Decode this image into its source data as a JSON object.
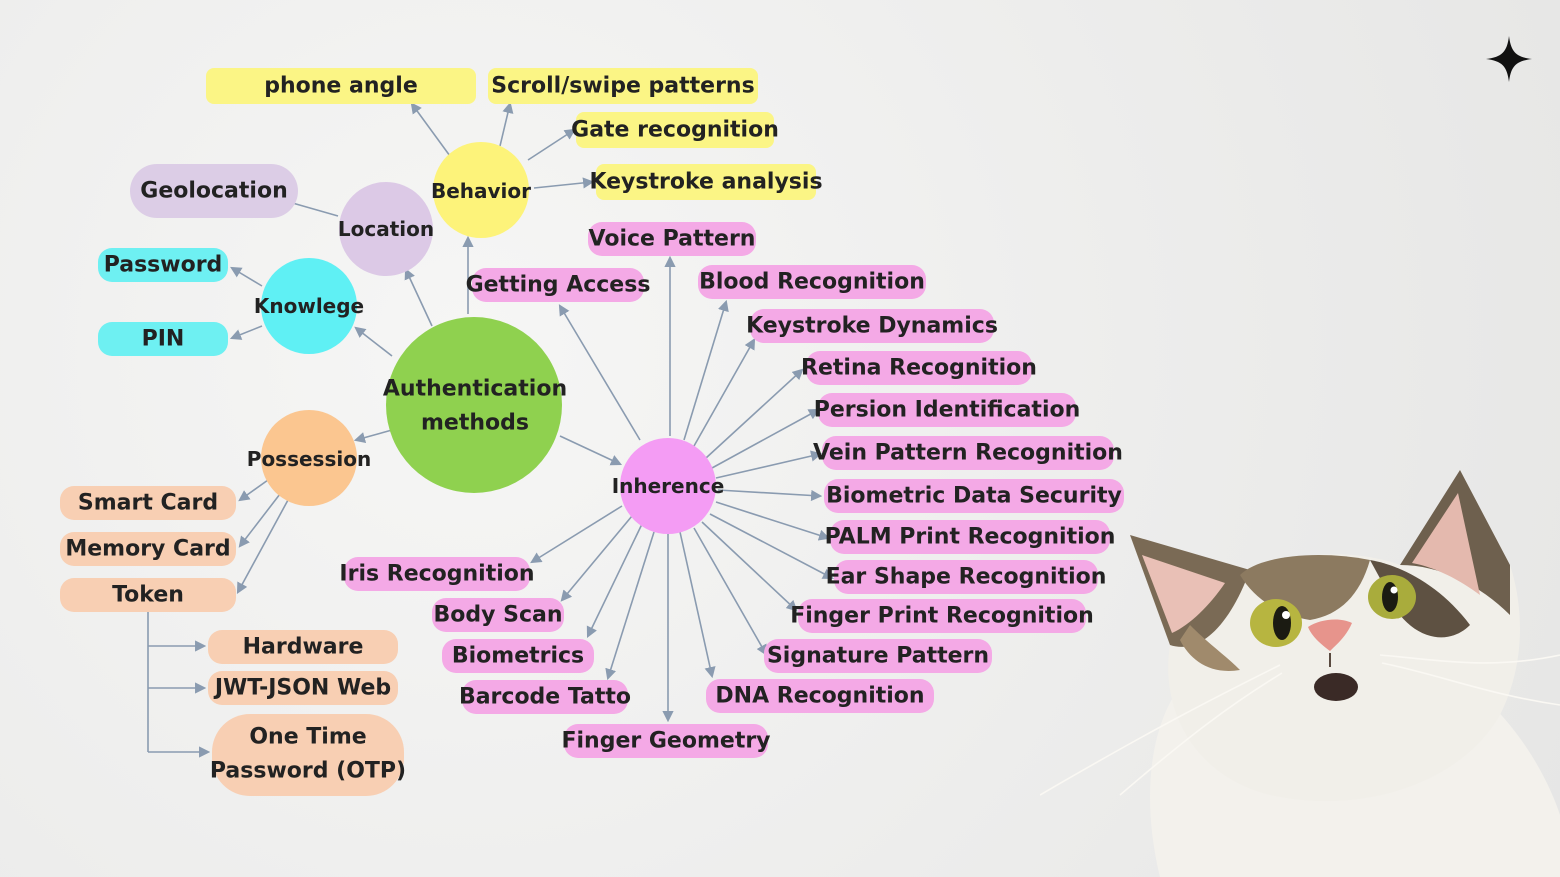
{
  "center": {
    "lines": [
      "Authentication",
      "methods"
    ],
    "color": "#8fd14f"
  },
  "categories": {
    "behavior": {
      "label": "Behavior",
      "color": "#fdf37a"
    },
    "location": {
      "label": "Location",
      "color": "#dcc9e6"
    },
    "knowledge": {
      "label": "Knowlege",
      "color": "#5ff0f4"
    },
    "possession": {
      "label": "Possession",
      "color": "#fbc690"
    },
    "inherence": {
      "label": "Inherence",
      "color": "#f49cf4"
    }
  },
  "leaves": {
    "behavior": [
      "phone angle",
      "Scroll/swipe patterns",
      "Gate recognition",
      "Keystroke analysis"
    ],
    "location": [
      "Geolocation"
    ],
    "knowledge": [
      "Password",
      "PIN"
    ],
    "possession": [
      "Smart Card",
      "Memory Card",
      "Token"
    ],
    "token_children": [
      "Hardware",
      "JWT-JSON Web",
      "One Time",
      "Password (OTP)"
    ],
    "getting_access": "Getting Access",
    "inherence": [
      "Voice Pattern",
      "Blood Recognition",
      "Keystroke Dynamics",
      "Retina Recognition",
      "Persion Identification",
      "Vein Pattern Recognition",
      "Biometric Data Security",
      "PALM Print Recognition",
      "Ear Shape Recognition",
      "Finger Print Recognition",
      "Signature Pattern",
      "DNA Recognition",
      "Finger Geometry",
      "Barcode Tatto",
      "Biometrics",
      "Body Scan",
      "Iris Recognition"
    ]
  },
  "pill_colors": {
    "behavior": "#fbf585",
    "location": "#dccde6",
    "knowledge": "#6ef0f2",
    "possession": "#f8cfb3",
    "inherence": "#f4a9e6"
  },
  "icons": {
    "sparkle": "sparkle-icon",
    "cat": "surprised-cat-photo"
  }
}
